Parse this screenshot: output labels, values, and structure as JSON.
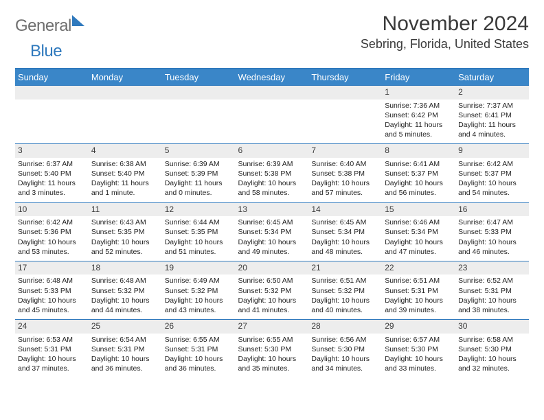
{
  "logo": {
    "text_gray": "General",
    "text_blue": "Blue"
  },
  "title": "November 2024",
  "location": "Sebring, Florida, United States",
  "colors": {
    "header_bg": "#3a86c8",
    "header_text": "#ffffff",
    "rule": "#2f79bd",
    "daynum_bg": "#ededed",
    "text": "#3a3a3a",
    "body_text": "#222222"
  },
  "daysOfWeek": [
    "Sunday",
    "Monday",
    "Tuesday",
    "Wednesday",
    "Thursday",
    "Friday",
    "Saturday"
  ],
  "weeks": [
    [
      {
        "n": "",
        "sunrise": "",
        "sunset": "",
        "daylight": ""
      },
      {
        "n": "",
        "sunrise": "",
        "sunset": "",
        "daylight": ""
      },
      {
        "n": "",
        "sunrise": "",
        "sunset": "",
        "daylight": ""
      },
      {
        "n": "",
        "sunrise": "",
        "sunset": "",
        "daylight": ""
      },
      {
        "n": "",
        "sunrise": "",
        "sunset": "",
        "daylight": ""
      },
      {
        "n": "1",
        "sunrise": "Sunrise: 7:36 AM",
        "sunset": "Sunset: 6:42 PM",
        "daylight": "Daylight: 11 hours and 5 minutes."
      },
      {
        "n": "2",
        "sunrise": "Sunrise: 7:37 AM",
        "sunset": "Sunset: 6:41 PM",
        "daylight": "Daylight: 11 hours and 4 minutes."
      }
    ],
    [
      {
        "n": "3",
        "sunrise": "Sunrise: 6:37 AM",
        "sunset": "Sunset: 5:40 PM",
        "daylight": "Daylight: 11 hours and 3 minutes."
      },
      {
        "n": "4",
        "sunrise": "Sunrise: 6:38 AM",
        "sunset": "Sunset: 5:40 PM",
        "daylight": "Daylight: 11 hours and 1 minute."
      },
      {
        "n": "5",
        "sunrise": "Sunrise: 6:39 AM",
        "sunset": "Sunset: 5:39 PM",
        "daylight": "Daylight: 11 hours and 0 minutes."
      },
      {
        "n": "6",
        "sunrise": "Sunrise: 6:39 AM",
        "sunset": "Sunset: 5:38 PM",
        "daylight": "Daylight: 10 hours and 58 minutes."
      },
      {
        "n": "7",
        "sunrise": "Sunrise: 6:40 AM",
        "sunset": "Sunset: 5:38 PM",
        "daylight": "Daylight: 10 hours and 57 minutes."
      },
      {
        "n": "8",
        "sunrise": "Sunrise: 6:41 AM",
        "sunset": "Sunset: 5:37 PM",
        "daylight": "Daylight: 10 hours and 56 minutes."
      },
      {
        "n": "9",
        "sunrise": "Sunrise: 6:42 AM",
        "sunset": "Sunset: 5:37 PM",
        "daylight": "Daylight: 10 hours and 54 minutes."
      }
    ],
    [
      {
        "n": "10",
        "sunrise": "Sunrise: 6:42 AM",
        "sunset": "Sunset: 5:36 PM",
        "daylight": "Daylight: 10 hours and 53 minutes."
      },
      {
        "n": "11",
        "sunrise": "Sunrise: 6:43 AM",
        "sunset": "Sunset: 5:35 PM",
        "daylight": "Daylight: 10 hours and 52 minutes."
      },
      {
        "n": "12",
        "sunrise": "Sunrise: 6:44 AM",
        "sunset": "Sunset: 5:35 PM",
        "daylight": "Daylight: 10 hours and 51 minutes."
      },
      {
        "n": "13",
        "sunrise": "Sunrise: 6:45 AM",
        "sunset": "Sunset: 5:34 PM",
        "daylight": "Daylight: 10 hours and 49 minutes."
      },
      {
        "n": "14",
        "sunrise": "Sunrise: 6:45 AM",
        "sunset": "Sunset: 5:34 PM",
        "daylight": "Daylight: 10 hours and 48 minutes."
      },
      {
        "n": "15",
        "sunrise": "Sunrise: 6:46 AM",
        "sunset": "Sunset: 5:34 PM",
        "daylight": "Daylight: 10 hours and 47 minutes."
      },
      {
        "n": "16",
        "sunrise": "Sunrise: 6:47 AM",
        "sunset": "Sunset: 5:33 PM",
        "daylight": "Daylight: 10 hours and 46 minutes."
      }
    ],
    [
      {
        "n": "17",
        "sunrise": "Sunrise: 6:48 AM",
        "sunset": "Sunset: 5:33 PM",
        "daylight": "Daylight: 10 hours and 45 minutes."
      },
      {
        "n": "18",
        "sunrise": "Sunrise: 6:48 AM",
        "sunset": "Sunset: 5:32 PM",
        "daylight": "Daylight: 10 hours and 44 minutes."
      },
      {
        "n": "19",
        "sunrise": "Sunrise: 6:49 AM",
        "sunset": "Sunset: 5:32 PM",
        "daylight": "Daylight: 10 hours and 43 minutes."
      },
      {
        "n": "20",
        "sunrise": "Sunrise: 6:50 AM",
        "sunset": "Sunset: 5:32 PM",
        "daylight": "Daylight: 10 hours and 41 minutes."
      },
      {
        "n": "21",
        "sunrise": "Sunrise: 6:51 AM",
        "sunset": "Sunset: 5:32 PM",
        "daylight": "Daylight: 10 hours and 40 minutes."
      },
      {
        "n": "22",
        "sunrise": "Sunrise: 6:51 AM",
        "sunset": "Sunset: 5:31 PM",
        "daylight": "Daylight: 10 hours and 39 minutes."
      },
      {
        "n": "23",
        "sunrise": "Sunrise: 6:52 AM",
        "sunset": "Sunset: 5:31 PM",
        "daylight": "Daylight: 10 hours and 38 minutes."
      }
    ],
    [
      {
        "n": "24",
        "sunrise": "Sunrise: 6:53 AM",
        "sunset": "Sunset: 5:31 PM",
        "daylight": "Daylight: 10 hours and 37 minutes."
      },
      {
        "n": "25",
        "sunrise": "Sunrise: 6:54 AM",
        "sunset": "Sunset: 5:31 PM",
        "daylight": "Daylight: 10 hours and 36 minutes."
      },
      {
        "n": "26",
        "sunrise": "Sunrise: 6:55 AM",
        "sunset": "Sunset: 5:31 PM",
        "daylight": "Daylight: 10 hours and 36 minutes."
      },
      {
        "n": "27",
        "sunrise": "Sunrise: 6:55 AM",
        "sunset": "Sunset: 5:30 PM",
        "daylight": "Daylight: 10 hours and 35 minutes."
      },
      {
        "n": "28",
        "sunrise": "Sunrise: 6:56 AM",
        "sunset": "Sunset: 5:30 PM",
        "daylight": "Daylight: 10 hours and 34 minutes."
      },
      {
        "n": "29",
        "sunrise": "Sunrise: 6:57 AM",
        "sunset": "Sunset: 5:30 PM",
        "daylight": "Daylight: 10 hours and 33 minutes."
      },
      {
        "n": "30",
        "sunrise": "Sunrise: 6:58 AM",
        "sunset": "Sunset: 5:30 PM",
        "daylight": "Daylight: 10 hours and 32 minutes."
      }
    ]
  ]
}
